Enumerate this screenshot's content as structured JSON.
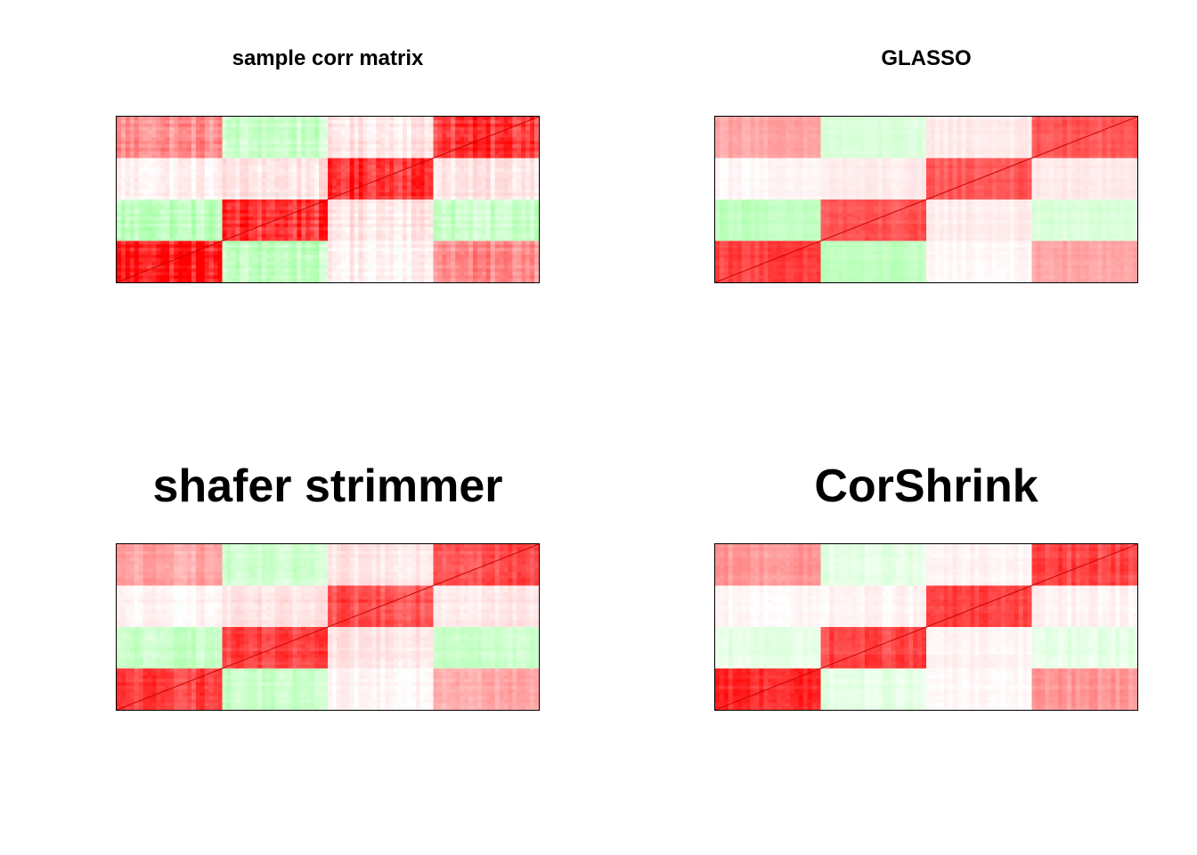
{
  "chart_data": [
    {
      "type": "heatmap",
      "title": "sample corr matrix",
      "blocks": 4,
      "colors": {
        "positive": "#ff0000",
        "negative": "#00ff00",
        "zero": "#ffffff"
      },
      "block_matrix": [
        [
          0.9,
          -0.25,
          0.05,
          0.45
        ],
        [
          -0.25,
          0.8,
          0.1,
          -0.2
        ],
        [
          0.05,
          0.1,
          0.8,
          0.1
        ],
        [
          0.45,
          -0.2,
          0.1,
          0.8
        ]
      ],
      "noise": 0.25
    },
    {
      "type": "heatmap",
      "title": "GLASSO",
      "blocks": 4,
      "colors": {
        "positive": "#ff0000",
        "negative": "#00ff00",
        "zero": "#ffffff"
      },
      "block_matrix": [
        [
          0.75,
          -0.25,
          0.03,
          0.35
        ],
        [
          -0.25,
          0.65,
          0.07,
          -0.15
        ],
        [
          0.03,
          0.07,
          0.65,
          0.08
        ],
        [
          0.35,
          -0.15,
          0.08,
          0.65
        ]
      ],
      "noise": 0.12
    },
    {
      "type": "heatmap",
      "title": "shafer strimmer",
      "blocks": 4,
      "colors": {
        "positive": "#ff0000",
        "negative": "#00ff00",
        "zero": "#ffffff"
      },
      "block_matrix": [
        [
          0.75,
          -0.22,
          0.04,
          0.35
        ],
        [
          -0.22,
          0.7,
          0.1,
          -0.2
        ],
        [
          0.04,
          0.1,
          0.7,
          0.1
        ],
        [
          0.35,
          -0.2,
          0.1,
          0.7
        ]
      ],
      "noise": 0.18
    },
    {
      "type": "heatmap",
      "title": "CorShrink",
      "blocks": 4,
      "colors": {
        "positive": "#ff0000",
        "negative": "#00ff00",
        "zero": "#ffffff"
      },
      "block_matrix": [
        [
          0.82,
          -0.1,
          0.02,
          0.4
        ],
        [
          -0.1,
          0.72,
          0.04,
          -0.1
        ],
        [
          0.02,
          0.04,
          0.72,
          0.04
        ],
        [
          0.4,
          -0.1,
          0.04,
          0.72
        ]
      ],
      "noise": 0.14
    }
  ]
}
